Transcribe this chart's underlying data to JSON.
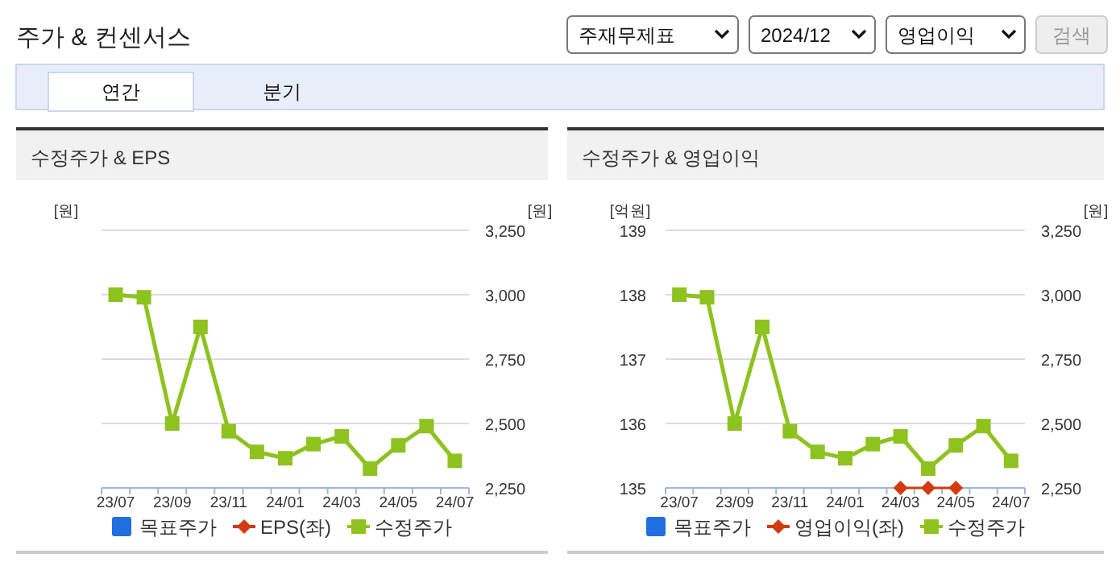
{
  "chart_data": [
    {
      "type": "other",
      "title": "주가 & 컨센서스",
      "annotations": [
        "주재무제표",
        "2024/12",
        "영업이익",
        "검색",
        "연간",
        "분기"
      ]
    },
    {
      "type": "line",
      "title": "수정주가 & EPS",
      "categories": [
        "23/07",
        null,
        "23/09",
        null,
        "23/11",
        null,
        "24/01",
        null,
        "24/03",
        null,
        "24/05",
        null,
        "24/07"
      ],
      "ylabel": "[원]",
      "y2label": "[원]",
      "y2lim": [
        2250,
        3250
      ],
      "y2ticks": [
        {
          "value": 2250,
          "label": "2,250"
        },
        {
          "value": 2500,
          "label": "2,500"
        },
        {
          "value": 2750,
          "label": "2,750"
        },
        {
          "value": 3000,
          "label": "3,000"
        },
        {
          "value": 3250,
          "label": "3,250"
        }
      ],
      "grid": "y",
      "legend": "bottom",
      "series": [
        {
          "name": "목표주가",
          "type": "bar",
          "color": "#1f6fe0",
          "values": [
            null,
            null,
            null,
            null,
            null,
            null,
            null,
            null,
            null,
            null,
            null,
            null,
            null
          ]
        },
        {
          "name": "EPS(좌)",
          "color": "#d13b0f",
          "marker": "diamond",
          "values": [
            null,
            null,
            null,
            null,
            null,
            null,
            null,
            null,
            null,
            null,
            null,
            null,
            null
          ]
        },
        {
          "name": "수정주가",
          "color": "#8dc21f",
          "marker": "square",
          "axis": "y2",
          "values": [
            3000,
            2990,
            2500,
            2875,
            2470,
            2390,
            2365,
            2420,
            2450,
            2325,
            2415,
            2490,
            2355
          ]
        }
      ]
    },
    {
      "type": "line",
      "title": "수정주가 & 영업이익",
      "categories": [
        "23/07",
        null,
        "23/09",
        null,
        "23/11",
        null,
        "24/01",
        null,
        "24/03",
        null,
        "24/05",
        null,
        "24/07"
      ],
      "ylabel": "[억원]",
      "y2label": "[원]",
      "ylim": [
        135,
        139
      ],
      "yticks": [
        135,
        136,
        137,
        138,
        139
      ],
      "y2lim": [
        2250,
        3250
      ],
      "y2ticks": [
        {
          "value": 2250,
          "label": "2,250"
        },
        {
          "value": 2500,
          "label": "2,500"
        },
        {
          "value": 2750,
          "label": "2,750"
        },
        {
          "value": 3000,
          "label": "3,000"
        },
        {
          "value": 3250,
          "label": "3,250"
        }
      ],
      "grid": "y",
      "legend": "bottom",
      "series": [
        {
          "name": "목표주가",
          "type": "bar",
          "color": "#1f6fe0",
          "values": [
            null,
            null,
            null,
            null,
            null,
            null,
            null,
            null,
            null,
            null,
            null,
            null,
            null
          ]
        },
        {
          "name": "영업이익(좌)",
          "color": "#d13b0f",
          "marker": "diamond",
          "values": [
            null,
            null,
            null,
            null,
            null,
            null,
            null,
            null,
            135,
            135,
            135,
            null,
            null
          ]
        },
        {
          "name": "수정주가",
          "color": "#8dc21f",
          "marker": "square",
          "axis": "y2",
          "values": [
            3000,
            2990,
            2500,
            2875,
            2470,
            2390,
            2365,
            2420,
            2450,
            2325,
            2415,
            2490,
            2355
          ]
        }
      ]
    }
  ]
}
